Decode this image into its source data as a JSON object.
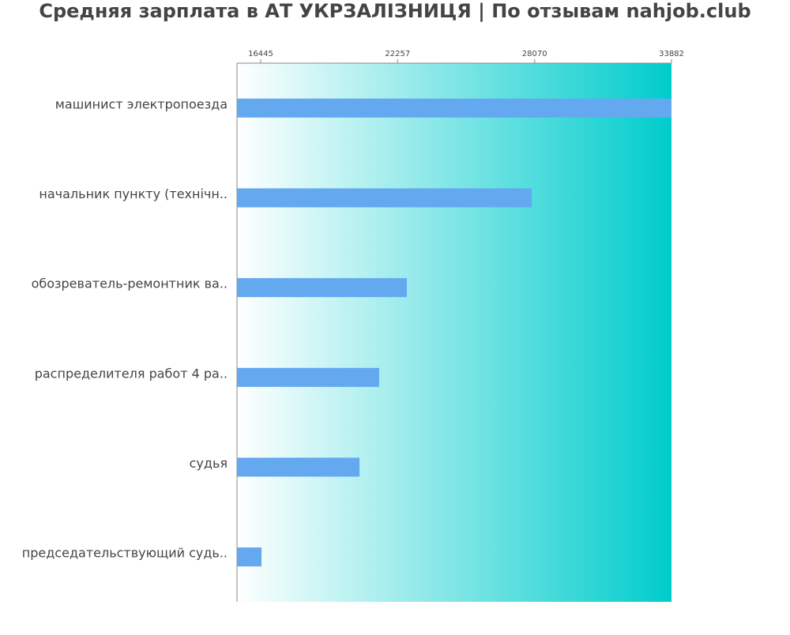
{
  "chart_data": {
    "type": "bar",
    "orientation": "horizontal",
    "title": "Средняя зарплата в АТ УКРЗАЛІЗНИЦЯ | По отзывам nahjob.club",
    "categories": [
      "машинист электропоезда",
      "начальник пункту (технічн..",
      "обозреватель-ремонтник ва..",
      "распределителя работ 4 ра..",
      "судья",
      "председательствующий судь.."
    ],
    "values": [
      33882,
      27950,
      22650,
      21475,
      20640,
      16480
    ],
    "color": "#64a8f0",
    "xlim": [
      15440,
      33882
    ],
    "xticks": [
      16445,
      22257,
      28070,
      33882
    ],
    "background_gradient": [
      "#ffffff",
      "#00cccc"
    ]
  }
}
